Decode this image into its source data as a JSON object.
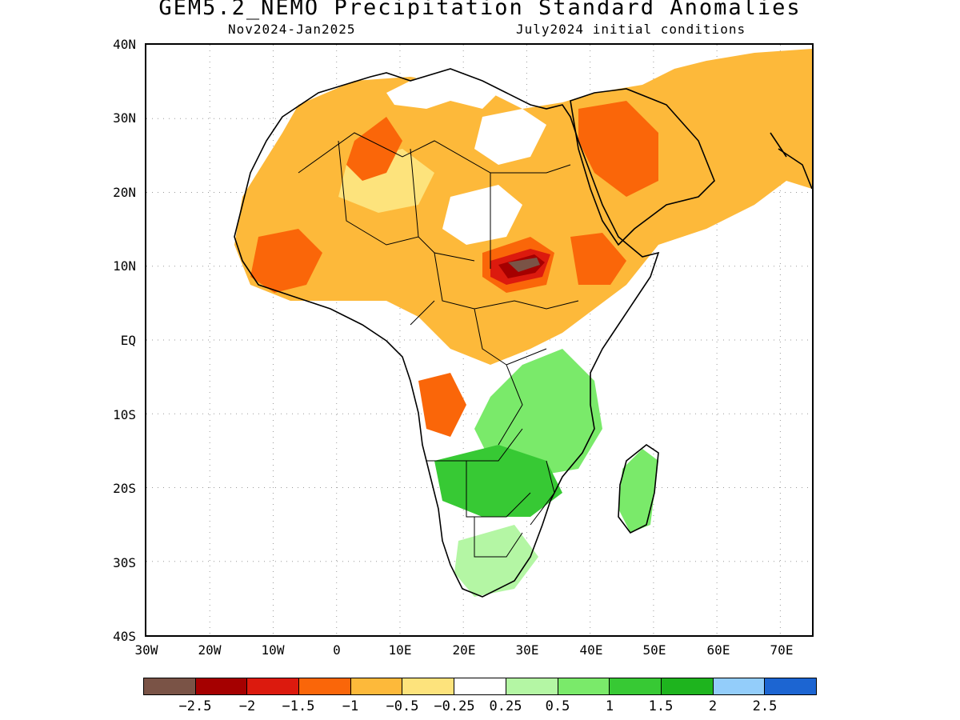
{
  "header": {
    "title": "GEM5.2_NEMO Precipitation Standard Anomalies",
    "period": "Nov2024-Jan2025",
    "init": "July2024 initial conditions"
  },
  "axes": {
    "y_labels": [
      "40N",
      "30N",
      "20N",
      "10N",
      "EQ",
      "10S",
      "20S",
      "30S",
      "40S"
    ],
    "x_labels": [
      "30W",
      "20W",
      "10W",
      "0",
      "10E",
      "20E",
      "30E",
      "40E",
      "50E",
      "60E",
      "70E"
    ]
  },
  "legend": {
    "colors": [
      "#7a5346",
      "#a50000",
      "#dc1a0e",
      "#fa6609",
      "#fdb93a",
      "#fde37c",
      "#ffffff",
      "#b4f6a4",
      "#7aea6a",
      "#37c934",
      "#1eb41e",
      "#93cdfa",
      "#1c65d2"
    ],
    "labels": [
      "-2.5",
      "-2",
      "-1.5",
      "-1",
      "-0.5",
      "-0.25",
      "0.25",
      "0.5",
      "1",
      "1.5",
      "2",
      "2.5"
    ]
  },
  "palette": {
    "coast": "#000000",
    "grid": "#9a9a9a"
  }
}
